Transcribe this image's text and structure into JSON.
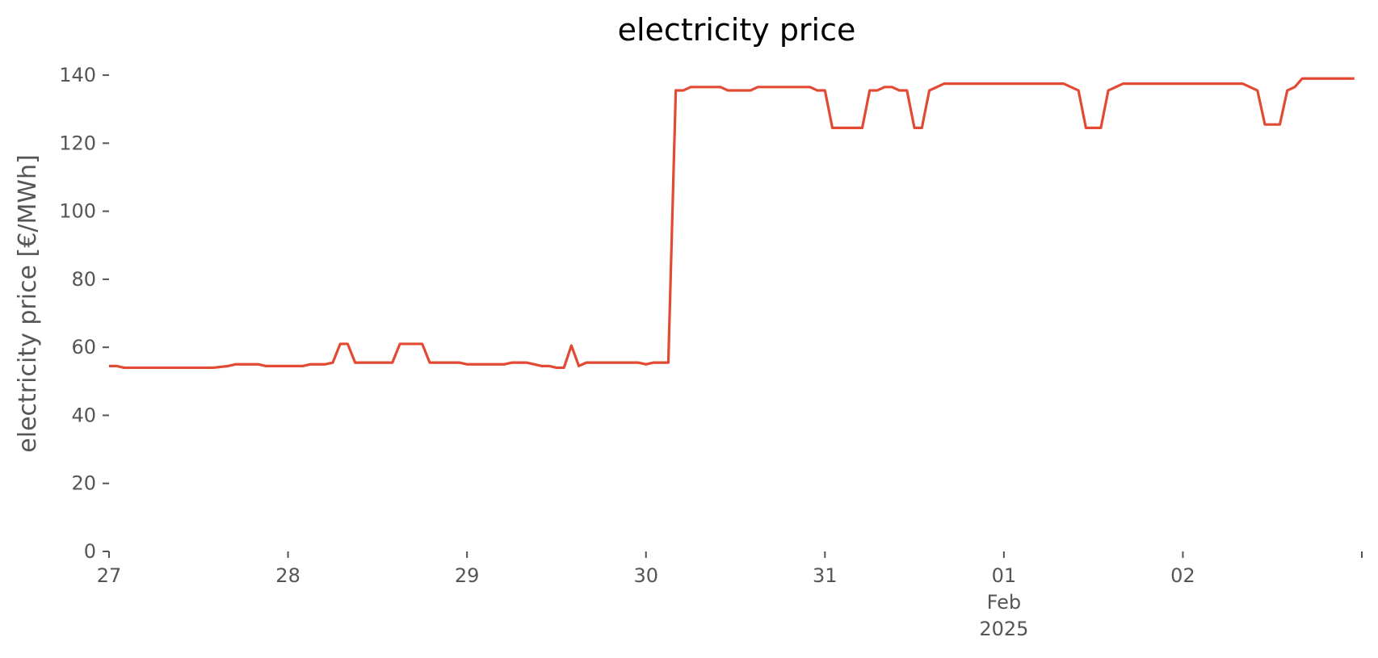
{
  "chart_data": {
    "type": "line",
    "title": "electricity price",
    "xlabel": "",
    "ylabel": "electricity price [€/MWh]",
    "ylim": [
      0,
      145
    ],
    "xlim": [
      "2025-01-27T00:00",
      "2025-02-03T00:00"
    ],
    "grid": false,
    "legend": "none",
    "x_ticks": [
      {
        "date": "2025-01-27",
        "label": "27",
        "sublabels": []
      },
      {
        "date": "2025-01-28",
        "label": "28",
        "sublabels": []
      },
      {
        "date": "2025-01-29",
        "label": "29",
        "sublabels": []
      },
      {
        "date": "2025-01-30",
        "label": "30",
        "sublabels": []
      },
      {
        "date": "2025-01-31",
        "label": "31",
        "sublabels": []
      },
      {
        "date": "2025-02-01",
        "label": "01",
        "sublabels": [
          "Feb",
          "2025"
        ]
      },
      {
        "date": "2025-02-02",
        "label": "02",
        "sublabels": []
      },
      {
        "date": "2025-02-03",
        "label": "",
        "sublabels": []
      }
    ],
    "y_ticks": [
      0,
      20,
      40,
      60,
      80,
      100,
      120,
      140
    ],
    "series": [
      {
        "color": "#E24A33",
        "points": [
          [
            "2025-01-27T00:00",
            54.5
          ],
          [
            "2025-01-27T01:00",
            54.5
          ],
          [
            "2025-01-27T02:00",
            54
          ],
          [
            "2025-01-27T06:00",
            54
          ],
          [
            "2025-01-27T10:00",
            54
          ],
          [
            "2025-01-27T14:00",
            54
          ],
          [
            "2025-01-27T16:00",
            54.5
          ],
          [
            "2025-01-27T17:00",
            55
          ],
          [
            "2025-01-27T20:00",
            55
          ],
          [
            "2025-01-27T21:00",
            54.5
          ],
          [
            "2025-01-28T00:00",
            54.5
          ],
          [
            "2025-01-28T02:00",
            54.5
          ],
          [
            "2025-01-28T03:00",
            55
          ],
          [
            "2025-01-28T05:00",
            55
          ],
          [
            "2025-01-28T06:00",
            55.5
          ],
          [
            "2025-01-28T07:00",
            61
          ],
          [
            "2025-01-28T08:00",
            61
          ],
          [
            "2025-01-28T09:00",
            55.5
          ],
          [
            "2025-01-28T14:00",
            55.5
          ],
          [
            "2025-01-28T15:00",
            61
          ],
          [
            "2025-01-28T18:00",
            61
          ],
          [
            "2025-01-28T19:00",
            55.5
          ],
          [
            "2025-01-28T23:00",
            55.5
          ],
          [
            "2025-01-29T00:00",
            55
          ],
          [
            "2025-01-29T05:00",
            55
          ],
          [
            "2025-01-29T06:00",
            55.5
          ],
          [
            "2025-01-29T08:00",
            55.5
          ],
          [
            "2025-01-29T09:00",
            55
          ],
          [
            "2025-01-29T10:00",
            54.5
          ],
          [
            "2025-01-29T11:00",
            54.5
          ],
          [
            "2025-01-29T12:00",
            54
          ],
          [
            "2025-01-29T13:00",
            54
          ],
          [
            "2025-01-29T14:00",
            60.5
          ],
          [
            "2025-01-29T15:00",
            54.5
          ],
          [
            "2025-01-29T16:00",
            55.5
          ],
          [
            "2025-01-29T23:00",
            55.5
          ],
          [
            "2025-01-30T00:00",
            55
          ],
          [
            "2025-01-30T01:00",
            55.5
          ],
          [
            "2025-01-30T03:00",
            55.5
          ],
          [
            "2025-01-30T04:00",
            135.5
          ],
          [
            "2025-01-30T05:00",
            135.5
          ],
          [
            "2025-01-30T06:00",
            136.5
          ],
          [
            "2025-01-30T10:00",
            136.5
          ],
          [
            "2025-01-30T11:00",
            135.5
          ],
          [
            "2025-01-30T14:00",
            135.5
          ],
          [
            "2025-01-30T15:00",
            136.5
          ],
          [
            "2025-01-30T22:00",
            136.5
          ],
          [
            "2025-01-30T23:00",
            135.5
          ],
          [
            "2025-01-31T00:00",
            135.5
          ],
          [
            "2025-01-31T01:00",
            124.5
          ],
          [
            "2025-01-31T05:00",
            124.5
          ],
          [
            "2025-01-31T06:00",
            135.5
          ],
          [
            "2025-01-31T07:00",
            135.5
          ],
          [
            "2025-01-31T08:00",
            136.5
          ],
          [
            "2025-01-31T09:00",
            136.5
          ],
          [
            "2025-01-31T10:00",
            135.5
          ],
          [
            "2025-01-31T11:00",
            135.5
          ],
          [
            "2025-01-31T12:00",
            124.5
          ],
          [
            "2025-01-31T13:00",
            124.5
          ],
          [
            "2025-01-31T14:00",
            135.5
          ],
          [
            "2025-01-31T16:00",
            137.5
          ],
          [
            "2025-02-01T08:00",
            137.5
          ],
          [
            "2025-02-01T10:00",
            135.5
          ],
          [
            "2025-02-01T11:00",
            124.5
          ],
          [
            "2025-02-01T13:00",
            124.5
          ],
          [
            "2025-02-01T14:00",
            135.5
          ],
          [
            "2025-02-01T16:00",
            137.5
          ],
          [
            "2025-02-02T08:00",
            137.5
          ],
          [
            "2025-02-02T10:00",
            135.5
          ],
          [
            "2025-02-02T11:00",
            125.5
          ],
          [
            "2025-02-02T13:00",
            125.5
          ],
          [
            "2025-02-02T14:00",
            135.5
          ],
          [
            "2025-02-02T15:00",
            136.5
          ],
          [
            "2025-02-02T16:00",
            139
          ],
          [
            "2025-02-02T23:00",
            139
          ]
        ]
      }
    ]
  }
}
